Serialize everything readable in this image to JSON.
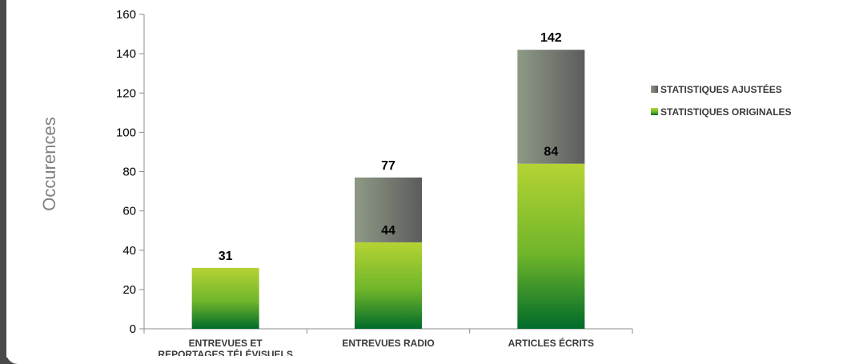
{
  "chart_data": {
    "type": "bar",
    "stacked": true,
    "ylabel": "Occurences",
    "xlabel": "",
    "ylim": [
      0,
      160
    ],
    "yticks": [
      0,
      20,
      40,
      60,
      80,
      100,
      120,
      140,
      160
    ],
    "categories": [
      [
        "ENTREVUES ET",
        "REPORTAGES TÉLÉVISUELS"
      ],
      [
        "ENTREVUES RADIO"
      ],
      [
        "ARTICLES ÉCRITS"
      ]
    ],
    "series": [
      {
        "name": "STATISTIQUES ORIGINALES",
        "values": [
          31,
          44,
          84
        ],
        "labels": [
          null,
          "44",
          "84"
        ],
        "color_top": "#b5d334",
        "color_bottom": "#006b2a"
      },
      {
        "name": "STATISTIQUES AJUSTÉES",
        "values": [
          0,
          33,
          58
        ],
        "color_top": "#8e9a85",
        "color_bottom": "#5c5c5c"
      }
    ],
    "totals": [
      31,
      77,
      142
    ],
    "legend": {
      "position": "right",
      "order": [
        "STATISTIQUES AJUSTÉES",
        "STATISTIQUES ORIGINALES"
      ]
    },
    "grid": false
  }
}
